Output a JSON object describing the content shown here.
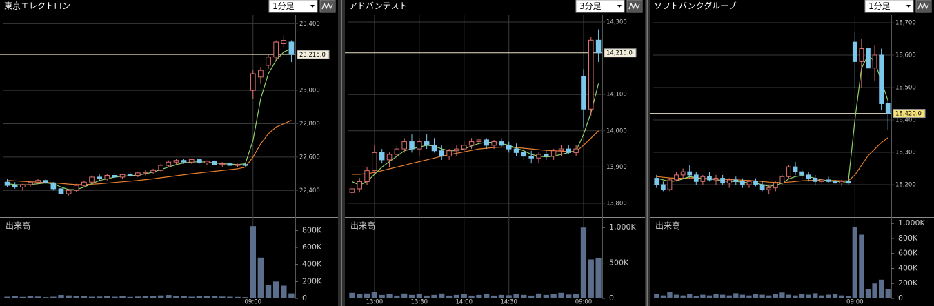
{
  "chart_data": [
    {
      "type": "candlestick",
      "title": "東京エレクトロン",
      "interval": "1分足",
      "volume_title": "出来高",
      "x": [
        null,
        null,
        null,
        null,
        null,
        null,
        null,
        null,
        null,
        null,
        null,
        null,
        null,
        null,
        null,
        null,
        null,
        null,
        null,
        null,
        null,
        null,
        null,
        null,
        null,
        null,
        null,
        null,
        null,
        null,
        null,
        null,
        "09:00",
        null,
        null,
        null,
        null,
        null
      ],
      "open": [
        22450,
        22430,
        22420,
        22435,
        22450,
        22460,
        22445,
        22410,
        22380,
        22400,
        22430,
        22450,
        22480,
        22470,
        22490,
        22480,
        22495,
        22490,
        22505,
        22510,
        22520,
        22550,
        22570,
        22580,
        22570,
        22585,
        22565,
        22575,
        22555,
        22560,
        22550,
        22555,
        23000,
        23080,
        23150,
        23200,
        23280,
        23290
      ],
      "high": [
        22470,
        22450,
        22440,
        22460,
        22470,
        22470,
        22450,
        22420,
        22410,
        22440,
        22460,
        22490,
        22500,
        22500,
        22510,
        22500,
        22510,
        22510,
        22520,
        22530,
        22560,
        22580,
        22590,
        22590,
        22590,
        22590,
        22580,
        22580,
        22570,
        22570,
        22560,
        22565,
        23120,
        23140,
        23220,
        23300,
        23330,
        23300
      ],
      "low": [
        22420,
        22410,
        22400,
        22420,
        22440,
        22440,
        22400,
        22370,
        22370,
        22390,
        22420,
        22440,
        22460,
        22460,
        22470,
        22470,
        22480,
        22480,
        22490,
        22500,
        22510,
        22540,
        22550,
        22560,
        22560,
        22560,
        22550,
        22550,
        22540,
        22545,
        22540,
        22545,
        22950,
        23040,
        23130,
        23180,
        23260,
        23170
      ],
      "close": [
        22430,
        22420,
        22435,
        22450,
        22460,
        22445,
        22410,
        22380,
        22400,
        22430,
        22450,
        22480,
        22470,
        22490,
        22480,
        22495,
        22490,
        22505,
        22510,
        22520,
        22550,
        22570,
        22580,
        22570,
        22585,
        22565,
        22575,
        22555,
        22560,
        22550,
        22555,
        22550,
        23100,
        23120,
        23200,
        23290,
        23300,
        23215
      ],
      "ma_short": [
        22440,
        22435,
        22432,
        22435,
        22440,
        22445,
        22440,
        22420,
        22405,
        22405,
        22420,
        22440,
        22460,
        22470,
        22480,
        22485,
        22488,
        22492,
        22500,
        22510,
        22525,
        22540,
        22555,
        22565,
        22570,
        22572,
        22570,
        22565,
        22560,
        22558,
        22555,
        22560,
        22700,
        22950,
        23100,
        23180,
        23230,
        23250
      ],
      "ma_long": [
        22460,
        22458,
        22455,
        22452,
        22450,
        22448,
        22446,
        22442,
        22438,
        22435,
        22435,
        22437,
        22440,
        22444,
        22448,
        22452,
        22456,
        22460,
        22465,
        22470,
        22476,
        22482,
        22488,
        22494,
        22500,
        22505,
        22510,
        22515,
        22520,
        22525,
        22530,
        22540,
        22600,
        22680,
        22740,
        22780,
        22800,
        22820
      ],
      "volume": [
        20000,
        25000,
        18000,
        30000,
        22000,
        15000,
        20000,
        40000,
        35000,
        25000,
        30000,
        20000,
        22000,
        28000,
        20000,
        25000,
        18000,
        22000,
        30000,
        25000,
        35000,
        40000,
        30000,
        25000,
        20000,
        28000,
        30000,
        25000,
        22000,
        20000,
        18000,
        15000,
        850000,
        480000,
        160000,
        200000,
        150000,
        60000
      ],
      "last_price": {
        "value": 23215,
        "label": "23,215.0"
      },
      "ylim": [
        22240,
        23410
      ],
      "yticks": [
        {
          "value": 22400,
          "label": "22,400"
        },
        {
          "value": 22600,
          "label": "22,600"
        },
        {
          "value": 22800,
          "label": "22,800"
        },
        {
          "value": 23000,
          "label": "23,000"
        },
        {
          "value": 23400,
          "label": "23,400"
        }
      ],
      "volume_ylim": [
        0,
        900000
      ],
      "volume_yticks": [
        0,
        {
          "value": 200000,
          "label": "200K"
        },
        {
          "value": 400000,
          "label": "400K"
        },
        {
          "value": 600000,
          "label": "600K"
        },
        {
          "value": 800000,
          "label": "800K"
        }
      ],
      "colors": {
        "up": "#e07070",
        "down": "#7cc8ec",
        "ma_short": "#8fd16a",
        "ma_long": "#e8802e",
        "volume": "#5b6f8c",
        "last_bg": "#f3eedc"
      }
    },
    {
      "type": "candlestick",
      "title": "アドバンテスト",
      "interval": "3分足",
      "volume_title": "出来高",
      "x": [
        null,
        null,
        null,
        "13:00",
        null,
        null,
        null,
        null,
        null,
        "13:30",
        null,
        null,
        null,
        null,
        null,
        "14:00",
        null,
        null,
        null,
        null,
        null,
        "14:30",
        null,
        null,
        null,
        null,
        null,
        null,
        null,
        null,
        null,
        "09:00",
        null,
        null
      ],
      "open": [
        13830,
        13840,
        13860,
        13890,
        13940,
        13920,
        13935,
        13950,
        13970,
        13950,
        13970,
        13960,
        13945,
        13930,
        13945,
        13950,
        13960,
        13970,
        13975,
        13960,
        13970,
        13960,
        13950,
        13940,
        13930,
        13925,
        13935,
        13930,
        13945,
        13950,
        13940,
        14150,
        14060,
        14250
      ],
      "high": [
        13850,
        13870,
        13900,
        13960,
        13950,
        13940,
        13960,
        13980,
        13990,
        13980,
        13990,
        13980,
        13960,
        13950,
        13960,
        13970,
        13980,
        13980,
        13980,
        13975,
        13980,
        13970,
        13965,
        13955,
        13945,
        13940,
        13945,
        13950,
        13960,
        13960,
        13960,
        14170,
        14260,
        14280
      ],
      "low": [
        13820,
        13830,
        13850,
        13880,
        13910,
        13900,
        13920,
        13940,
        13940,
        13930,
        13950,
        13940,
        13920,
        13920,
        13930,
        13940,
        13950,
        13960,
        13950,
        13950,
        13955,
        13940,
        13930,
        13920,
        13910,
        13910,
        13920,
        13920,
        13930,
        13935,
        13930,
        14010,
        14040,
        14190
      ],
      "close": [
        13840,
        13860,
        13890,
        13940,
        13920,
        13935,
        13950,
        13970,
        13950,
        13970,
        13960,
        13945,
        13930,
        13945,
        13950,
        13960,
        13970,
        13975,
        13960,
        13970,
        13960,
        13950,
        13940,
        13930,
        13925,
        13935,
        13930,
        13945,
        13950,
        13940,
        13950,
        14060,
        14250,
        14215
      ],
      "ma_short": [
        13860,
        13850,
        13860,
        13880,
        13900,
        13915,
        13930,
        13945,
        13950,
        13955,
        13960,
        13958,
        13950,
        13945,
        13945,
        13950,
        13958,
        13965,
        13968,
        13968,
        13965,
        13960,
        13952,
        13945,
        13935,
        13930,
        13928,
        13930,
        13935,
        13940,
        13945,
        13990,
        14050,
        14130
      ],
      "ma_long": [
        13880,
        13880,
        13882,
        13885,
        13890,
        13895,
        13900,
        13905,
        13910,
        13915,
        13920,
        13925,
        13930,
        13934,
        13938,
        13942,
        13946,
        13950,
        13952,
        13954,
        13955,
        13955,
        13954,
        13952,
        13950,
        13948,
        13946,
        13945,
        13944,
        13943,
        13943,
        13960,
        13980,
        14000
      ],
      "volume": [
        80000,
        60000,
        70000,
        90000,
        50000,
        60000,
        40000,
        70000,
        50000,
        60000,
        40000,
        50000,
        70000,
        40000,
        50000,
        60000,
        40000,
        50000,
        60000,
        40000,
        50000,
        45000,
        60000,
        50000,
        40000,
        70000,
        50000,
        60000,
        80000,
        55000,
        60000,
        1000000,
        550000,
        570000
      ],
      "last_price": {
        "value": 14215,
        "label": "14,215.0"
      },
      "ylim": [
        13762,
        14300
      ],
      "yticks": [
        {
          "value": 13800,
          "label": "13,800"
        },
        {
          "value": 13900,
          "label": "13,900"
        },
        {
          "value": 14000,
          "label": "14,000"
        },
        {
          "value": 14100,
          "label": "14,100"
        },
        {
          "value": 14300,
          "label": "14,300"
        }
      ],
      "volume_ylim": [
        0,
        1080000
      ],
      "volume_yticks": [
        0,
        {
          "value": 500000,
          "label": "500K"
        },
        {
          "value": 1000000,
          "label": "1,000K"
        }
      ],
      "colors": {
        "up": "#e07070",
        "down": "#7cc8ec",
        "ma_short": "#8fd16a",
        "ma_long": "#e8802e",
        "volume": "#5b6f8c",
        "last_bg": "#f3eedc"
      }
    },
    {
      "type": "candlestick",
      "title": "ソフトバンクグループ",
      "interval": "1分足",
      "volume_title": "出来高",
      "x": [
        null,
        null,
        null,
        null,
        null,
        null,
        null,
        null,
        null,
        null,
        null,
        null,
        null,
        null,
        null,
        null,
        null,
        null,
        null,
        null,
        null,
        null,
        null,
        null,
        null,
        null,
        null,
        null,
        null,
        null,
        "09:00",
        null,
        null,
        null,
        null,
        null
      ],
      "open": [
        18220,
        18200,
        18185,
        18215,
        18230,
        18240,
        18230,
        18210,
        18225,
        18215,
        18220,
        18205,
        18215,
        18210,
        18200,
        18210,
        18200,
        18185,
        18190,
        18205,
        18225,
        18255,
        18240,
        18230,
        18220,
        18210,
        18215,
        18210,
        18205,
        18210,
        18640,
        18580,
        18620,
        18560,
        18600,
        18450
      ],
      "high": [
        18230,
        18210,
        18220,
        18240,
        18250,
        18260,
        18240,
        18230,
        18240,
        18230,
        18230,
        18220,
        18225,
        18220,
        18215,
        18220,
        18210,
        18200,
        18210,
        18230,
        18260,
        18270,
        18250,
        18240,
        18230,
        18220,
        18225,
        18220,
        18215,
        18220,
        18670,
        18650,
        18640,
        18630,
        18620,
        18460
      ],
      "low": [
        18190,
        18180,
        18180,
        18210,
        18220,
        18220,
        18200,
        18200,
        18210,
        18200,
        18200,
        18190,
        18200,
        18190,
        18190,
        18195,
        18180,
        18170,
        18180,
        18200,
        18220,
        18230,
        18220,
        18210,
        18200,
        18200,
        18205,
        18200,
        18195,
        18200,
        18500,
        18500,
        18530,
        18520,
        18430,
        18370
      ],
      "close": [
        18200,
        18185,
        18215,
        18230,
        18240,
        18230,
        18210,
        18225,
        18215,
        18220,
        18205,
        18215,
        18210,
        18200,
        18210,
        18200,
        18185,
        18190,
        18205,
        18225,
        18255,
        18240,
        18230,
        18220,
        18210,
        18215,
        18210,
        18205,
        18210,
        18205,
        18580,
        18620,
        18560,
        18600,
        18450,
        18420
      ],
      "ma_short": [
        18220,
        18215,
        18210,
        18212,
        18218,
        18225,
        18222,
        18218,
        18218,
        18215,
        18212,
        18210,
        18210,
        18208,
        18206,
        18205,
        18200,
        18195,
        18198,
        18205,
        18218,
        18225,
        18228,
        18225,
        18220,
        18215,
        18212,
        18210,
        18209,
        18208,
        18400,
        18560,
        18600,
        18580,
        18520,
        18460
      ],
      "ma_long": [
        18225,
        18223,
        18221,
        18220,
        18220,
        18221,
        18221,
        18220,
        18219,
        18218,
        18217,
        18216,
        18215,
        18214,
        18213,
        18212,
        18210,
        18208,
        18207,
        18207,
        18208,
        18210,
        18212,
        18213,
        18214,
        18214,
        18213,
        18213,
        18212,
        18212,
        18230,
        18260,
        18290,
        18310,
        18330,
        18345
      ],
      "volume": [
        60000,
        40000,
        90000,
        50000,
        40000,
        60000,
        30000,
        50000,
        40000,
        60000,
        50000,
        40000,
        70000,
        50000,
        40000,
        60000,
        50000,
        40000,
        60000,
        80000,
        50000,
        40000,
        60000,
        50000,
        70000,
        40000,
        50000,
        60000,
        40000,
        30000,
        950000,
        850000,
        120000,
        200000,
        250000,
        120000
      ],
      "last_price": {
        "value": 18420,
        "label": "18,420.0"
      },
      "ylim": [
        18100,
        18702
      ],
      "yticks": [
        {
          "value": 18200,
          "label": "18,200"
        },
        {
          "value": 18300,
          "label": "18,300"
        },
        {
          "value": 18400,
          "label": "18,400"
        },
        {
          "value": 18500,
          "label": "18,500"
        },
        {
          "value": 18600,
          "label": "18,600"
        },
        {
          "value": 18700,
          "label": "18,700"
        }
      ],
      "volume_ylim": [
        0,
        1020000
      ],
      "volume_yticks": [
        0,
        {
          "value": 200000,
          "label": "200K"
        },
        {
          "value": 400000,
          "label": "400K"
        },
        {
          "value": 600000,
          "label": "600K"
        },
        {
          "value": 800000,
          "label": "800K"
        },
        {
          "value": 1000000,
          "label": "1,000K"
        }
      ],
      "colors": {
        "up": "#e07070",
        "down": "#7cc8ec",
        "ma_short": "#8fd16a",
        "ma_long": "#e8802e",
        "volume": "#5b6f8c",
        "last_bg": "#f7e27a"
      }
    }
  ]
}
